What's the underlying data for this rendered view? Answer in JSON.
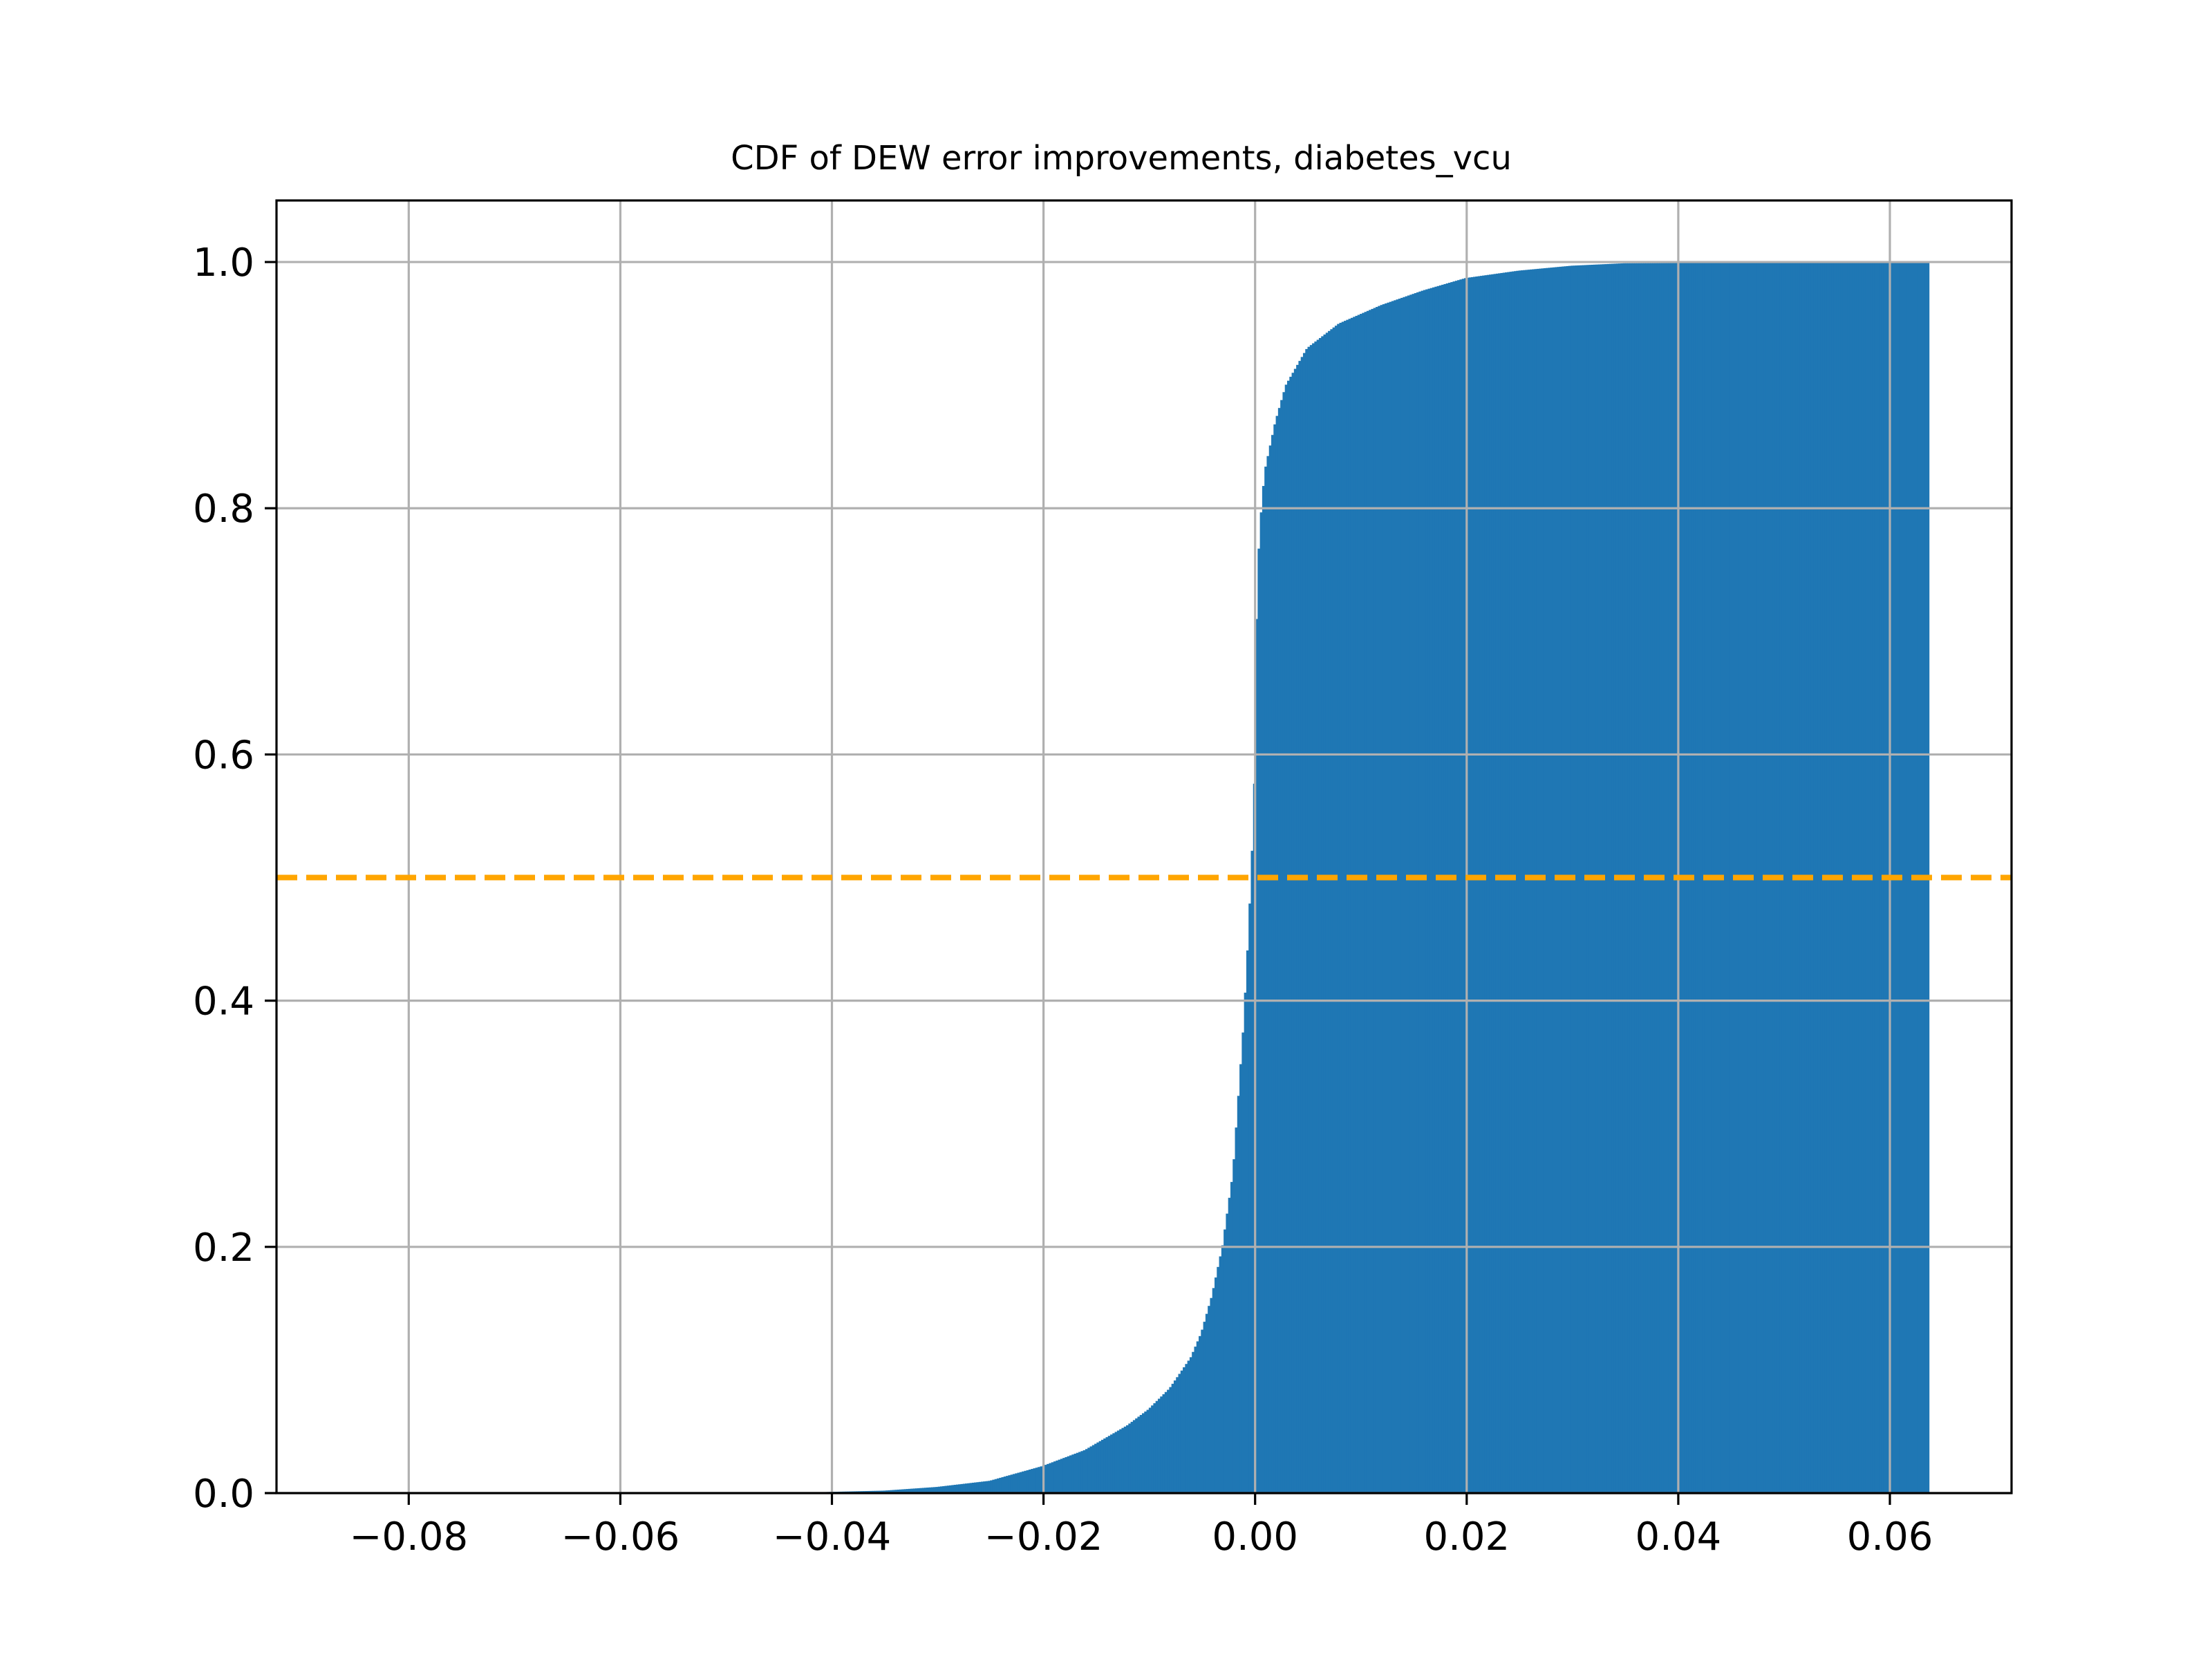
{
  "chart_data": {
    "type": "bar",
    "title": "CDF of DEW error improvements, diabetes_vcu",
    "xlabel": "",
    "ylabel": "",
    "xlim": [
      -0.0925,
      0.0715
    ],
    "ylim": [
      0.0,
      1.05
    ],
    "x_ticks": [
      -0.08,
      -0.06,
      -0.04,
      -0.02,
      0.0,
      0.02,
      0.04,
      0.06
    ],
    "x_tick_labels": [
      "−0.08",
      "−0.06",
      "−0.04",
      "−0.02",
      "0.00",
      "0.02",
      "0.04",
      "0.06"
    ],
    "y_ticks": [
      0.0,
      0.2,
      0.4,
      0.6,
      0.8,
      1.0
    ],
    "y_tick_labels": [
      "0.0",
      "0.2",
      "0.4",
      "0.6",
      "0.8",
      "1.0"
    ],
    "grid": true,
    "bar_color": "#1f77b4",
    "cumulative_histogram": {
      "x_start": -0.0435,
      "x_end": 0.0637,
      "cdf_points": [
        [
          -0.0435,
          0.0
        ],
        [
          -0.04,
          0.001
        ],
        [
          -0.035,
          0.002
        ],
        [
          -0.03,
          0.005
        ],
        [
          -0.025,
          0.01
        ],
        [
          -0.02,
          0.022
        ],
        [
          -0.016,
          0.035
        ],
        [
          -0.012,
          0.055
        ],
        [
          -0.01,
          0.068
        ],
        [
          -0.008,
          0.085
        ],
        [
          -0.006,
          0.11
        ],
        [
          -0.005,
          0.13
        ],
        [
          -0.004,
          0.16
        ],
        [
          -0.003,
          0.2
        ],
        [
          -0.002,
          0.26
        ],
        [
          -0.0015,
          0.32
        ],
        [
          -0.001,
          0.38
        ],
        [
          -0.0005,
          0.46
        ],
        [
          0.0,
          0.56
        ],
        [
          0.0002,
          0.7
        ],
        [
          0.0005,
          0.78
        ],
        [
          0.001,
          0.83
        ],
        [
          0.002,
          0.87
        ],
        [
          0.003,
          0.9
        ],
        [
          0.005,
          0.93
        ],
        [
          0.008,
          0.95
        ],
        [
          0.012,
          0.965
        ],
        [
          0.016,
          0.977
        ],
        [
          0.02,
          0.987
        ],
        [
          0.025,
          0.993
        ],
        [
          0.03,
          0.997
        ],
        [
          0.035,
          0.999
        ],
        [
          0.0637,
          1.0
        ]
      ]
    },
    "reference_line": {
      "y": 0.5,
      "color": "#ffa500",
      "style": "dashed"
    }
  }
}
